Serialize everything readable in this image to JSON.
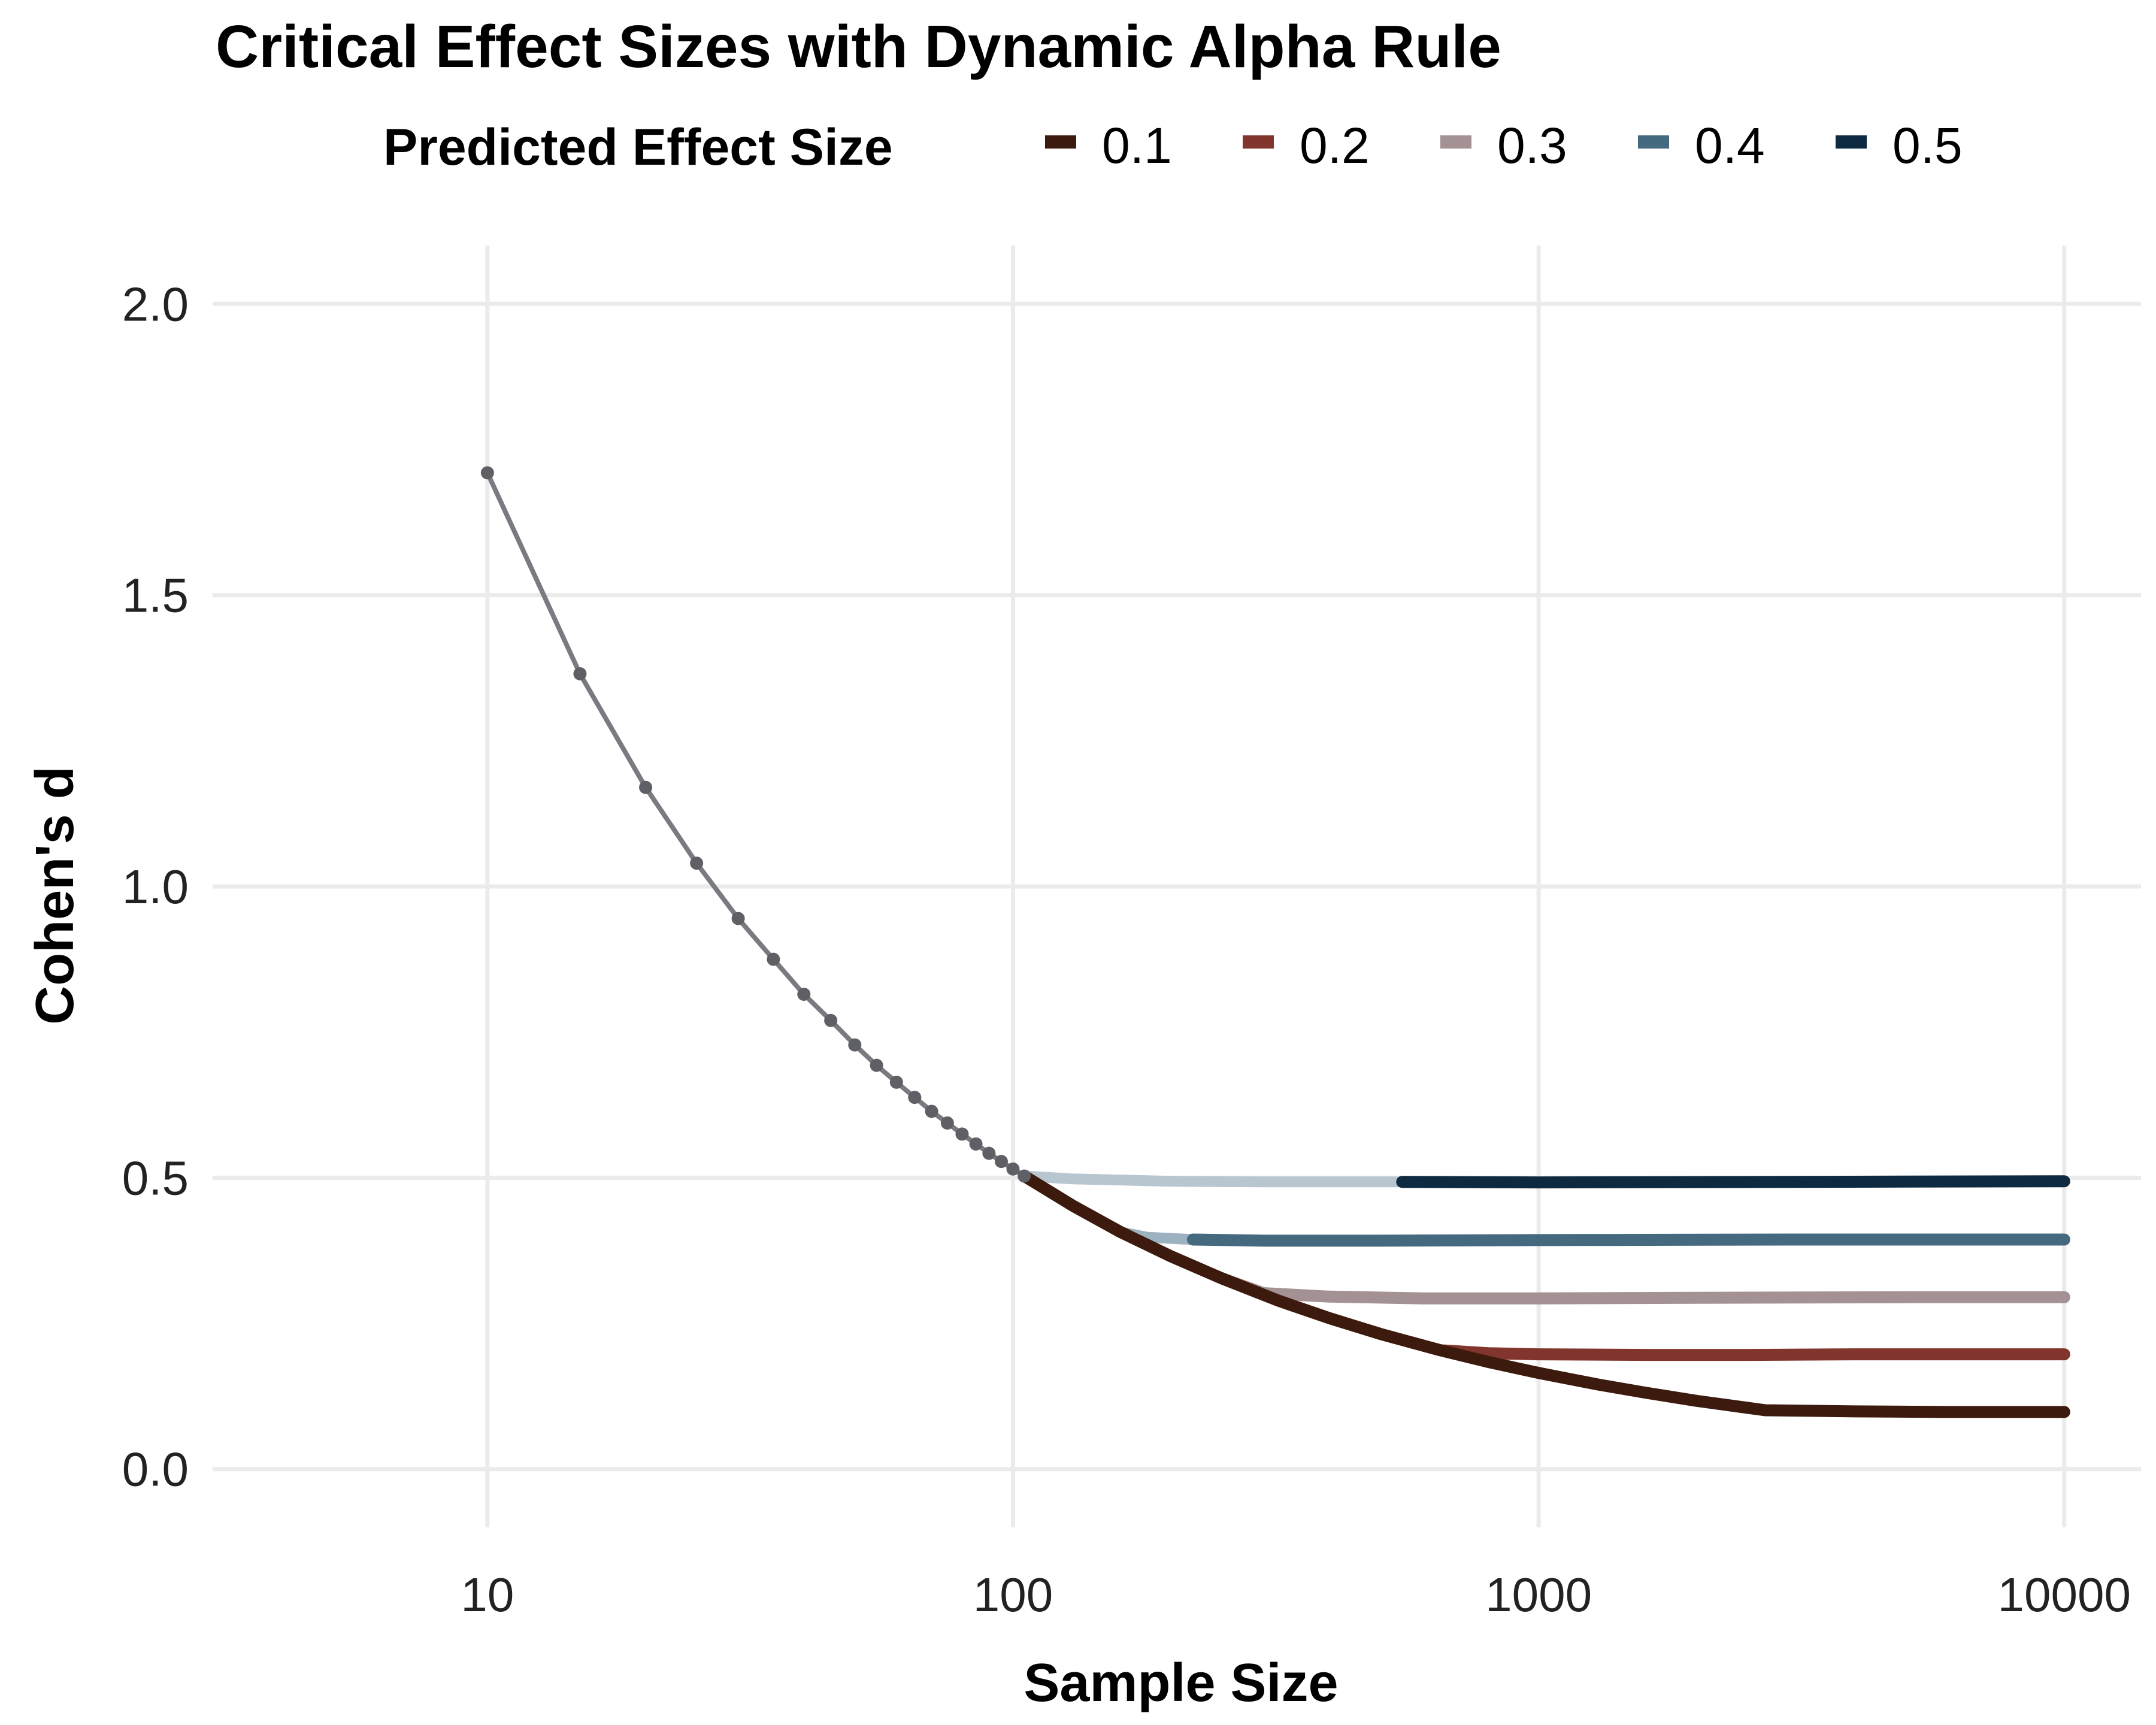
{
  "chart_data": {
    "type": "line",
    "title": "Critical Effect Sizes with Dynamic Alpha Rule",
    "xlabel": "Sample Size",
    "ylabel": "Cohen's d",
    "x_scale": "log10",
    "xlim": [
      3,
      14000
    ],
    "ylim": [
      -0.1,
      2.1
    ],
    "x_ticks": [
      10,
      100,
      1000,
      10000
    ],
    "x_tick_labels": [
      "10",
      "100",
      "1000",
      "10000"
    ],
    "y_ticks": [
      0,
      0.5,
      1,
      1.5,
      2
    ],
    "y_tick_labels": [
      "0.0",
      "0.5",
      "1.0",
      "1.5",
      "2.0"
    ],
    "grid": true,
    "legend": {
      "title": "Predicted Effect Size",
      "position": "top",
      "entries": [
        "0.1",
        "0.2",
        "0.3",
        "0.4",
        "0.5"
      ]
    },
    "shared_curve": {
      "color": "#7a7a80",
      "x": [
        10,
        15,
        20,
        25,
        30,
        35,
        40,
        45,
        50,
        55,
        60,
        65,
        70,
        75,
        80,
        85,
        90,
        95,
        100,
        105
      ],
      "y": [
        1.71,
        1.365,
        1.17,
        1.04,
        0.945,
        0.875,
        0.815,
        0.77,
        0.728,
        0.693,
        0.664,
        0.638,
        0.614,
        0.594,
        0.575,
        0.558,
        0.542,
        0.528,
        0.515,
        0.503
      ]
    },
    "series": [
      {
        "name": "0.1",
        "color": "#3c1a0e",
        "x": [
          105,
          130,
          160,
          200,
          250,
          320,
          400,
          500,
          650,
          800,
          1000,
          1300,
          1600,
          2000,
          2700,
          4000,
          6000,
          10000
        ],
        "y": [
          0.503,
          0.452,
          0.407,
          0.365,
          0.327,
          0.289,
          0.259,
          0.232,
          0.204,
          0.184,
          0.165,
          0.145,
          0.131,
          0.117,
          0.101,
          0.099,
          0.098,
          0.098
        ]
      },
      {
        "name": "0.2",
        "color": "#82352c",
        "x": [
          105,
          130,
          160,
          200,
          250,
          320,
          400,
          500,
          650,
          800,
          1000,
          1600,
          2500,
          4000,
          10000
        ],
        "y": [
          0.503,
          0.452,
          0.407,
          0.365,
          0.327,
          0.289,
          0.259,
          0.232,
          0.204,
          0.199,
          0.197,
          0.196,
          0.196,
          0.197,
          0.197
        ]
      },
      {
        "name": "0.3",
        "color": "#a39193",
        "x": [
          105,
          130,
          160,
          200,
          250,
          300,
          400,
          600,
          1000,
          2000,
          5000,
          10000
        ],
        "y": [
          0.503,
          0.452,
          0.407,
          0.365,
          0.327,
          0.302,
          0.296,
          0.293,
          0.293,
          0.294,
          0.295,
          0.295
        ]
      },
      {
        "name": "0.4",
        "color": "#45697f",
        "x": [
          105,
          130,
          160,
          180,
          220,
          300,
          500,
          1000,
          3000,
          10000
        ],
        "y": [
          0.503,
          0.452,
          0.407,
          0.398,
          0.394,
          0.392,
          0.392,
          0.393,
          0.394,
          0.394
        ]
      },
      {
        "name": "0.5",
        "color": "#0d2a40",
        "x": [
          105,
          130,
          200,
          300,
          550,
          1000,
          3000,
          10000
        ],
        "y": [
          0.503,
          0.498,
          0.494,
          0.493,
          0.493,
          0.492,
          0.493,
          0.494
        ]
      }
    ]
  }
}
